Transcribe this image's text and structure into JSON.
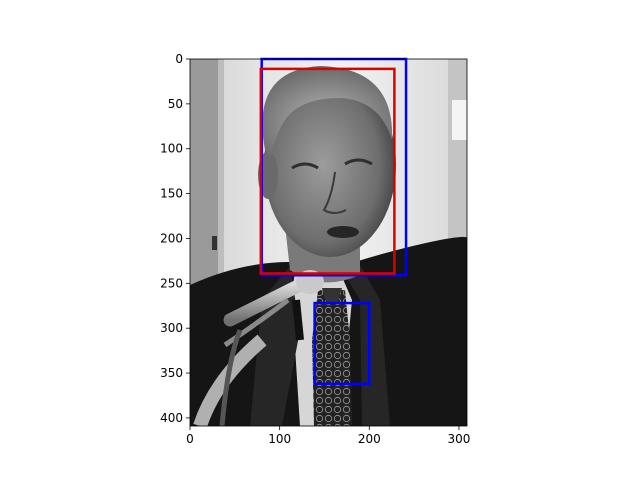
{
  "chart_data": {
    "type": "image-with-boxes",
    "xlim": [
      0,
      309
    ],
    "ylim": [
      409,
      0
    ],
    "xticks": [
      0,
      100,
      200,
      300
    ],
    "yticks": [
      0,
      50,
      100,
      150,
      200,
      250,
      300,
      350,
      400
    ],
    "image": {
      "description": "grayscale portrait of a man in suit and tie speaking at microphones",
      "width": 309,
      "height": 409
    },
    "boxes": [
      {
        "color": "#0000ff",
        "x0": 80,
        "y0": 0,
        "x1": 241,
        "y1": 241
      },
      {
        "color": "#dd0000",
        "x0": 79,
        "y0": 11,
        "x1": 228,
        "y1": 239
      },
      {
        "color": "#0000ff",
        "x0": 139,
        "y0": 272,
        "x1": 200,
        "y1": 362
      }
    ]
  }
}
